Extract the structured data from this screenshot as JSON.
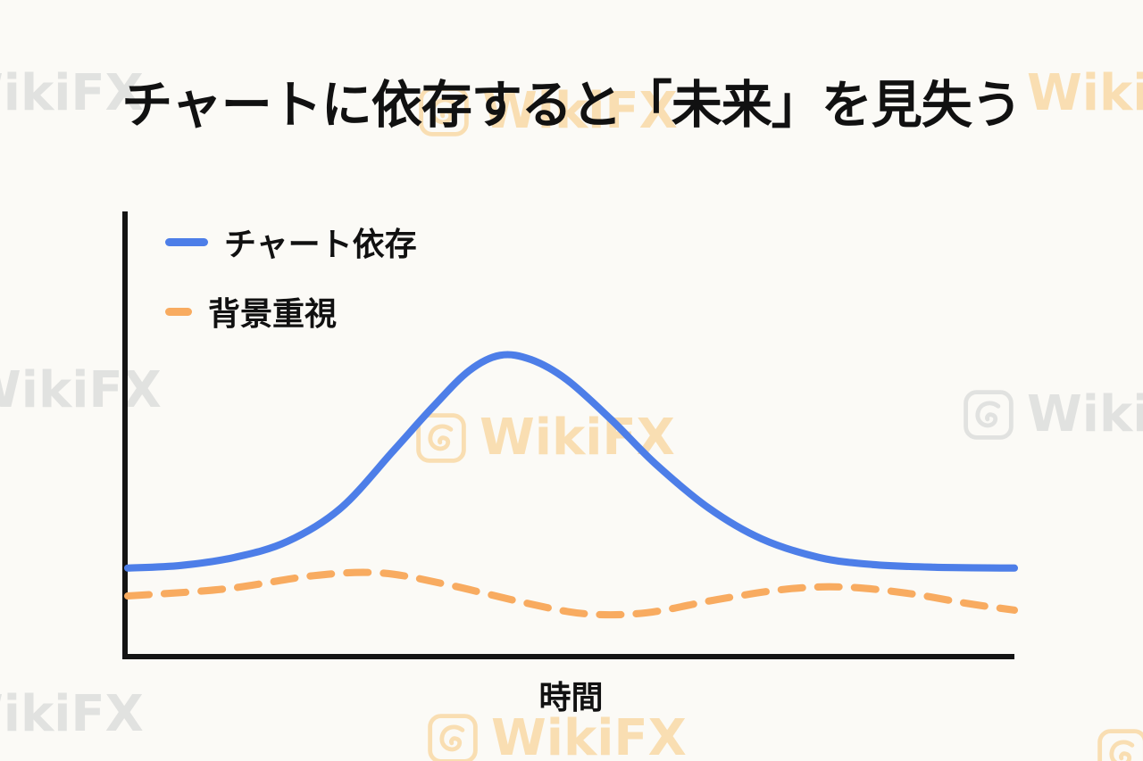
{
  "title": "チャートに依存すると「未来」を見失う",
  "watermark": {
    "text": "WikiFX",
    "orange": "#f6a623",
    "gray": "#7d828a"
  },
  "chart_data": {
    "type": "line",
    "title": "",
    "xlabel": "時間",
    "ylabel": "",
    "xlim": [
      0,
      10
    ],
    "ylim": [
      0,
      100
    ],
    "grid": false,
    "legend_position": "top-left",
    "series": [
      {
        "name": "チャート依存",
        "color": "#4d7ee8",
        "style": "solid",
        "points": [
          [
            0,
            19.4
          ],
          [
            0.6,
            20.0
          ],
          [
            1.2,
            21.8
          ],
          [
            1.8,
            25.4
          ],
          [
            2.4,
            32.9
          ],
          [
            3.0,
            46.0
          ],
          [
            3.45,
            56.0
          ],
          [
            3.85,
            64.0
          ],
          [
            4.2,
            67.5
          ],
          [
            4.55,
            66.5
          ],
          [
            4.95,
            62.0
          ],
          [
            5.45,
            53.0
          ],
          [
            5.95,
            43.0
          ],
          [
            6.55,
            33.0
          ],
          [
            7.15,
            26.0
          ],
          [
            7.8,
            21.8
          ],
          [
            8.4,
            20.2
          ],
          [
            9.1,
            19.6
          ],
          [
            10,
            19.4
          ]
        ]
      },
      {
        "name": "背景重視",
        "color": "#f8ab60",
        "style": "dashed",
        "points": [
          [
            0,
            13.1
          ],
          [
            1.1,
            14.7
          ],
          [
            2.1,
            17.7
          ],
          [
            2.85,
            18.3
          ],
          [
            3.6,
            15.7
          ],
          [
            4.45,
            11.7
          ],
          [
            5.15,
            9.1
          ],
          [
            5.85,
            9.3
          ],
          [
            6.65,
            12.3
          ],
          [
            7.45,
            14.7
          ],
          [
            8.1,
            15.1
          ],
          [
            8.8,
            13.7
          ],
          [
            9.5,
            11.3
          ],
          [
            10,
            9.9
          ]
        ]
      }
    ]
  }
}
